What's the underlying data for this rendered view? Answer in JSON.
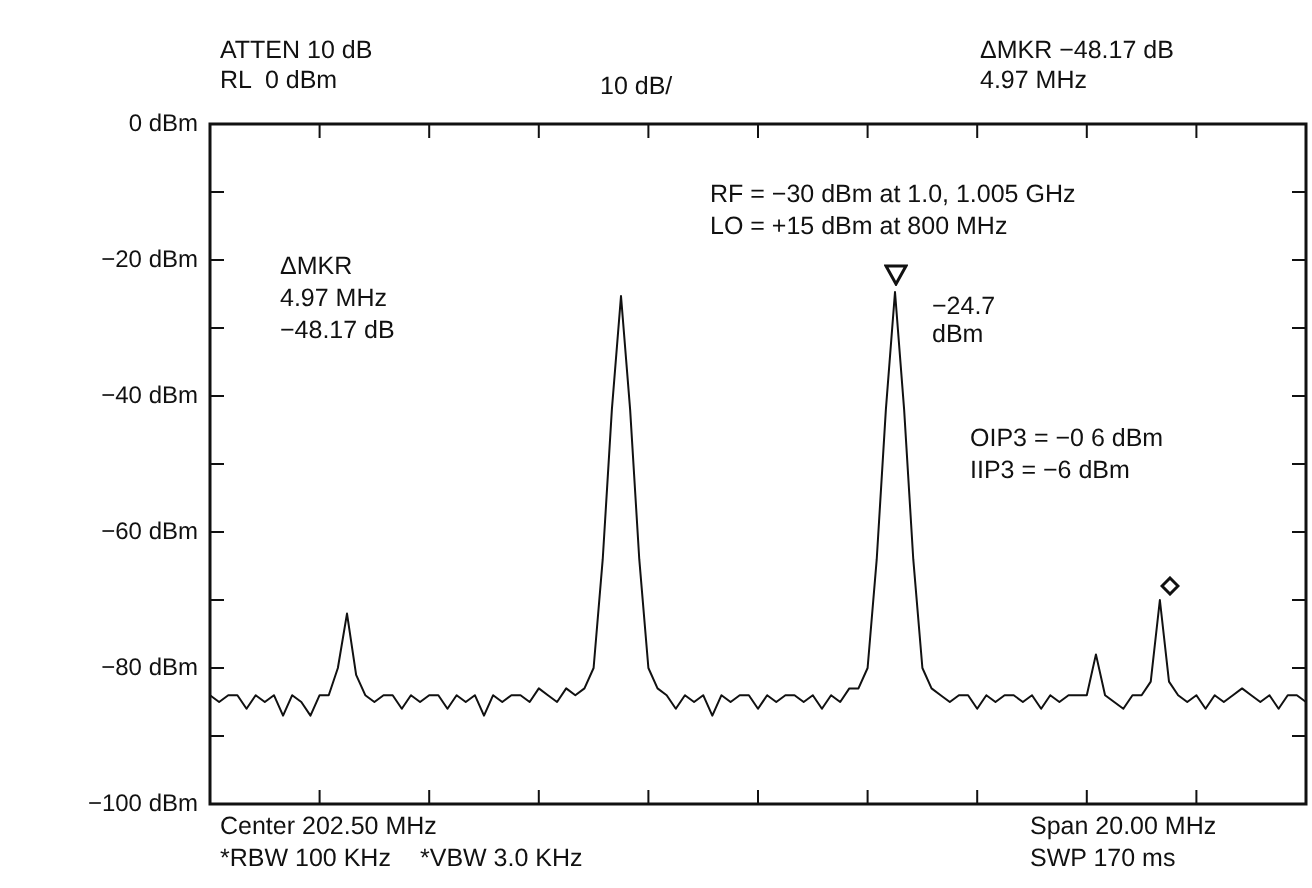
{
  "chart_data": {
    "type": "line",
    "categories": [
      null,
      null,
      null,
      null,
      null,
      null,
      null,
      null,
      null,
      null,
      null,
      null,
      null,
      null,
      null,
      null,
      null,
      null,
      null,
      null,
      null,
      null,
      null,
      null,
      null,
      null,
      null,
      null,
      null,
      null,
      null,
      null,
      null,
      null,
      null,
      null,
      null,
      null,
      null,
      null,
      null,
      null,
      null,
      null,
      null,
      null,
      null,
      null,
      null,
      null,
      null,
      null,
      null,
      null,
      null,
      null,
      null,
      null,
      null,
      null,
      null,
      null,
      null,
      null,
      null,
      null,
      null,
      null,
      null,
      null,
      null,
      null,
      null,
      null,
      null,
      null,
      null,
      null,
      null,
      null,
      null,
      null,
      null,
      null,
      null,
      null,
      null,
      null,
      null,
      null,
      null,
      null,
      null,
      null,
      null,
      null,
      null,
      null,
      null,
      null,
      null,
      null,
      null,
      null,
      null,
      null,
      null,
      null,
      null,
      null,
      null,
      null,
      null,
      null,
      null,
      null,
      null,
      null,
      null,
      null,
      null
    ],
    "series": [
      {
        "color": "#111111",
        "values": [
          -84,
          -85,
          -84,
          -84,
          -86,
          -84,
          -85,
          -84,
          -87,
          -84,
          -85,
          -87,
          -84,
          -84,
          -80,
          -72,
          -81,
          -84,
          -85,
          -84,
          -84,
          -86,
          -84,
          -85,
          -84,
          -84,
          -86,
          -84,
          -85,
          -84,
          -87,
          -84,
          -85,
          -84,
          -84,
          -85,
          -83,
          -84,
          -85,
          -83,
          -84,
          -83,
          -80,
          -64,
          -42,
          -25.3,
          -42,
          -64,
          -80,
          -83,
          -84,
          -86,
          -84,
          -85,
          -84,
          -87,
          -84,
          -85,
          -84,
          -84,
          -86,
          -84,
          -85,
          -84,
          -84,
          -85,
          -84,
          -86,
          -84,
          -85,
          -83,
          -83,
          -80,
          -64,
          -42,
          -24.7,
          -42,
          -64,
          -80,
          -83,
          -84,
          -85,
          -84,
          -84,
          -86,
          -84,
          -85,
          -84,
          -84,
          -85,
          -84,
          -86,
          -84,
          -85,
          -84,
          -84,
          -84,
          -78,
          -84,
          -85,
          -86,
          -84,
          -84,
          -82,
          -70,
          -82,
          -84,
          -85,
          -84,
          -86,
          -84,
          -85,
          -84,
          -83,
          -84,
          -85,
          -84,
          -86,
          -84,
          -84,
          -85
        ]
      }
    ],
    "ylim": [
      -100,
      0
    ],
    "yticks": [
      {
        "value": -100,
        "label": "−100 dBm"
      },
      {
        "value": -90,
        "label": null
      },
      {
        "value": -80,
        "label": "−80 dBm"
      },
      {
        "value": -70,
        "label": null
      },
      {
        "value": -60,
        "label": "−60 dBm"
      },
      {
        "value": -50,
        "label": null
      },
      {
        "value": -40,
        "label": "−40 dBm"
      },
      {
        "value": -30,
        "label": null
      },
      {
        "value": -20,
        "label": "−20 dBm"
      },
      {
        "value": -10,
        "label": null
      },
      {
        "value": 0,
        "label": "0 dBm"
      }
    ],
    "grid": false,
    "legend": false,
    "marker": "none",
    "line_style": "solid",
    "annotations": [
      "ATTEN 10 dB",
      "RL  0 dBm",
      "10 dB/",
      "ΔMKR −48.17 dB",
      "4.97 MHz",
      "ΔMKR",
      "4.97 MHz",
      "−48.17 dB",
      "RF = −30 dBm at 1.0, 1.005 GHz",
      "LO = +15 dBm at 800 MHz",
      "−24.7 dBm",
      "OIP3 = −0 6 dBm",
      "IIP3 = −6 dBm",
      "Center 202.50 MHz",
      "*RBW 100 KHz",
      "*VBW 3.0 KHz",
      "Span 20.00 MHz",
      "SWP 170 ms"
    ]
  }
}
